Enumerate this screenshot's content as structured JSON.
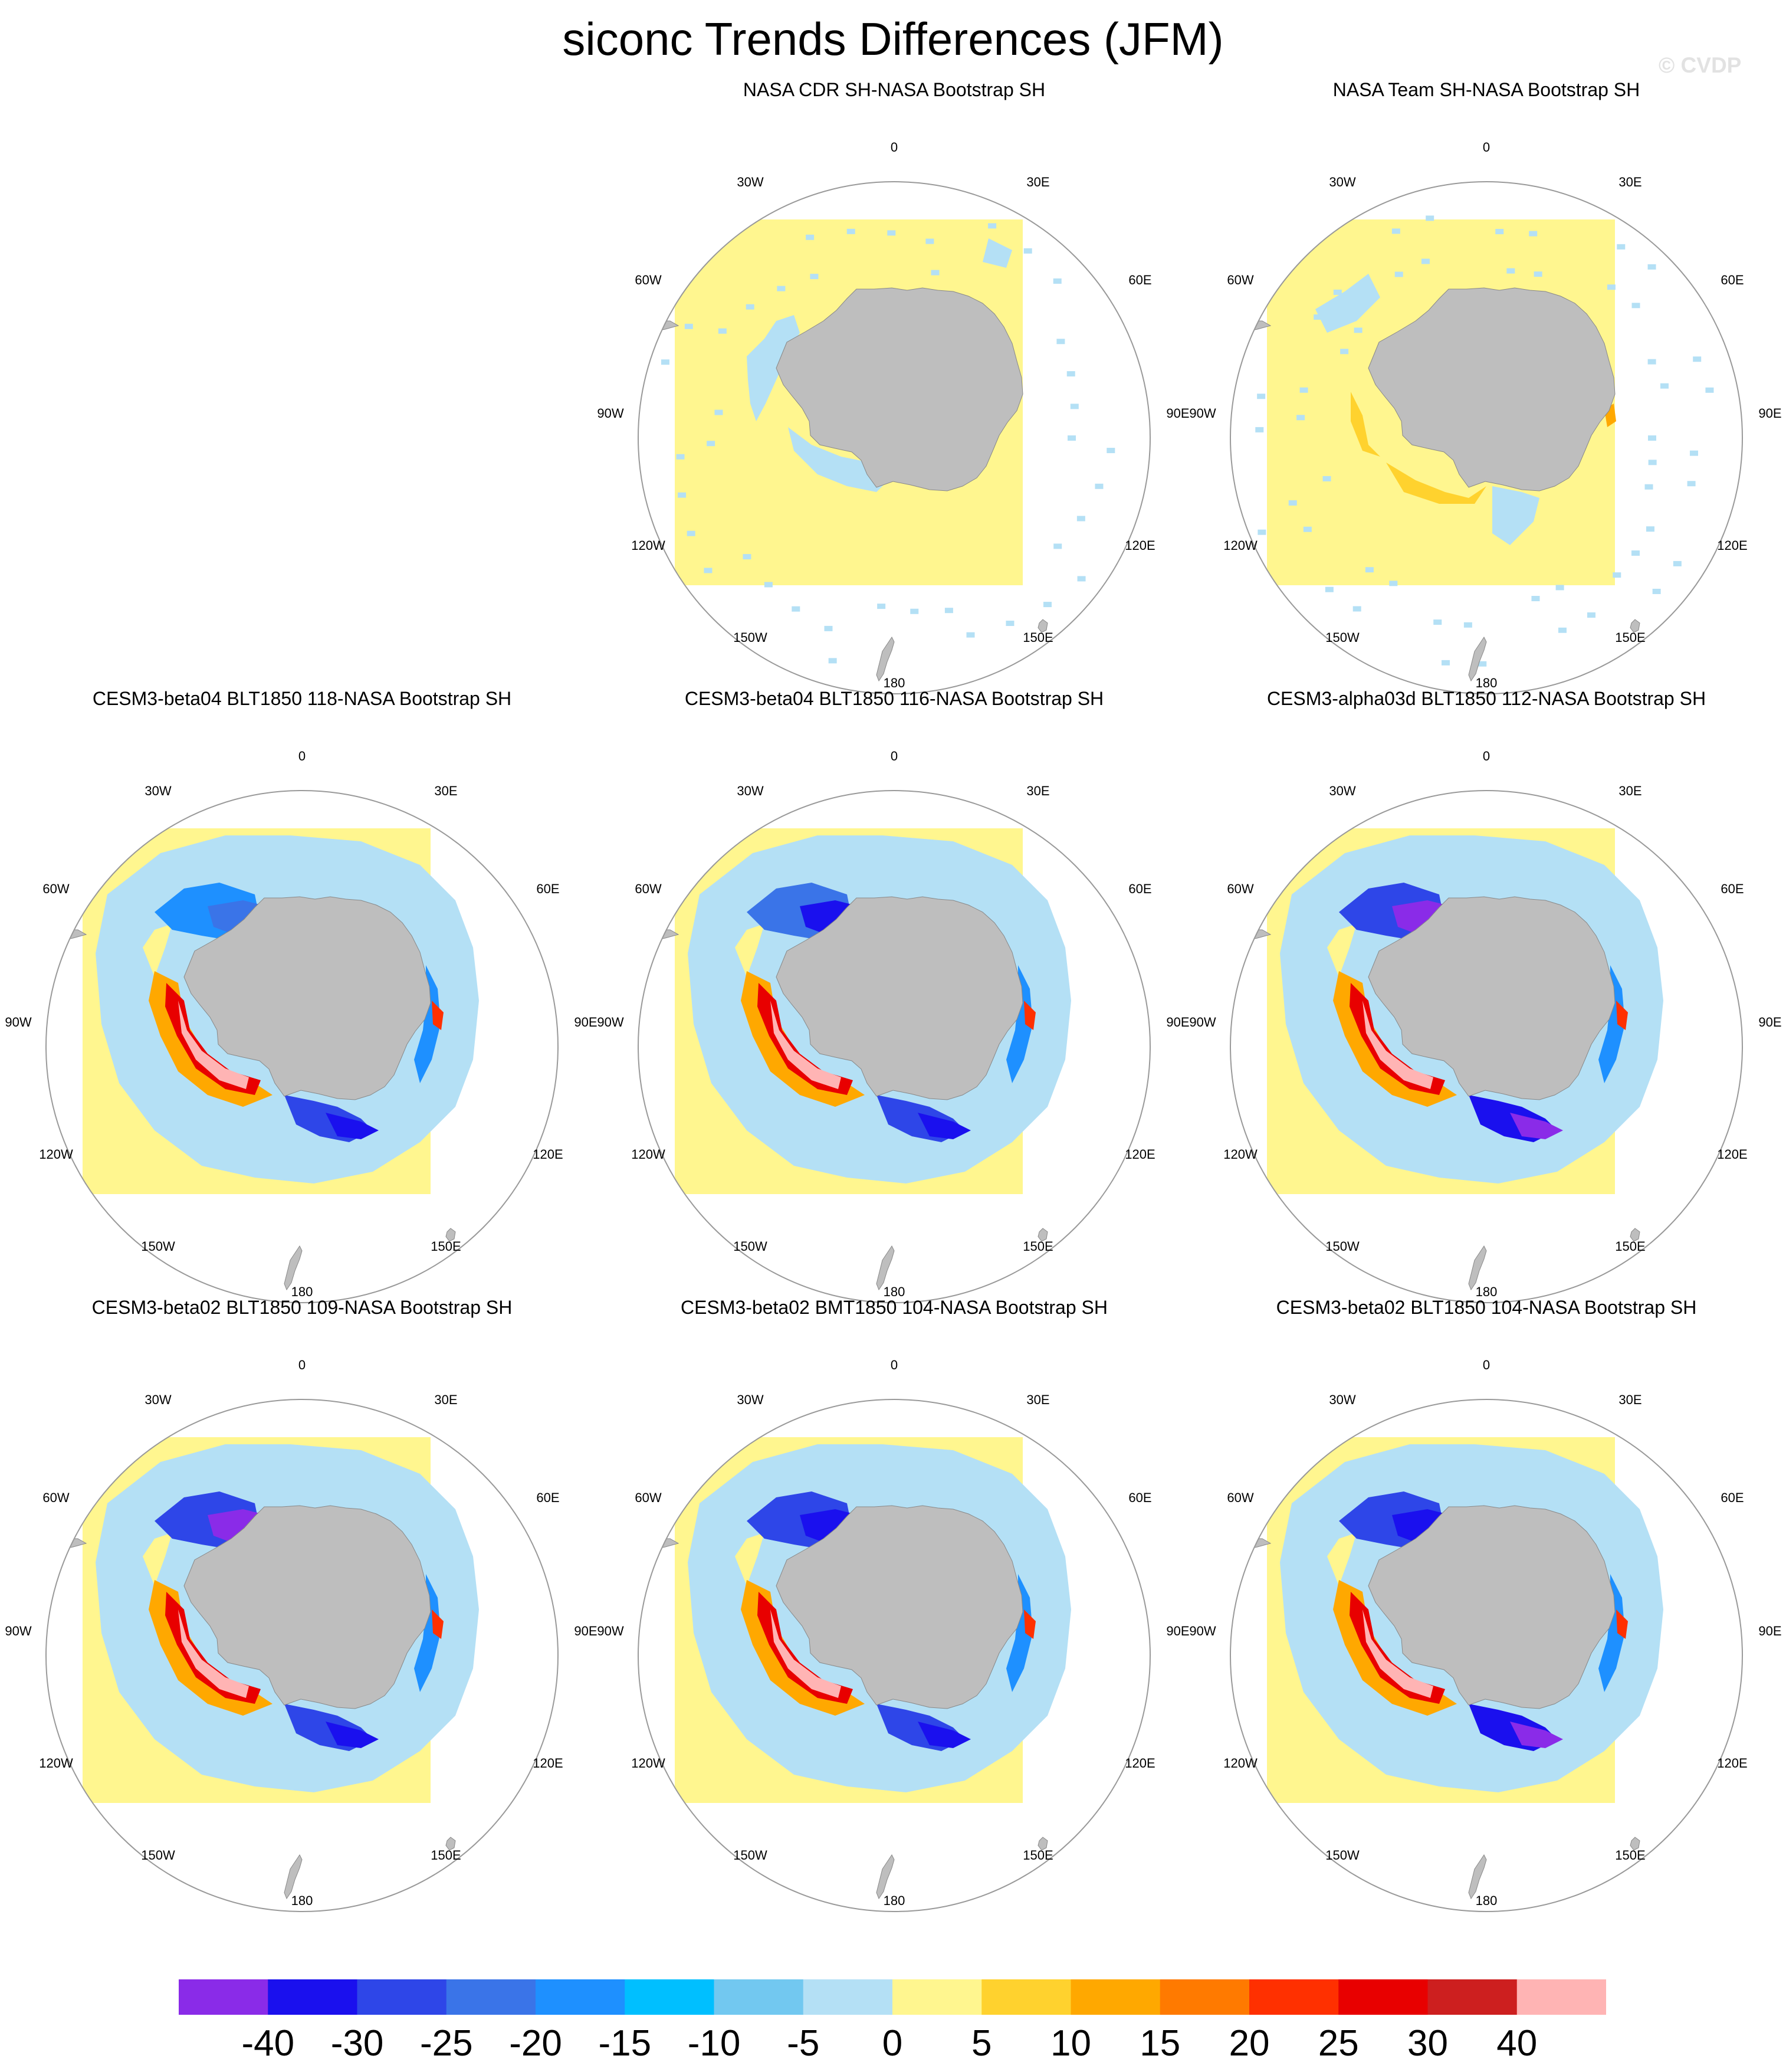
{
  "title": "siconc Trends Differences (JFM)",
  "watermark": "© CVDP",
  "longitude_labels": [
    "0",
    "30E",
    "60E",
    "90E",
    "120E",
    "150E",
    "180",
    "150W",
    "120W",
    "90W",
    "60W",
    "30W"
  ],
  "panels": [
    {
      "title": "NASA CDR SH-NASA Bootstrap SH",
      "model": false,
      "pattern": "cdr"
    },
    {
      "title": "NASA Team SH-NASA Bootstrap SH",
      "model": false,
      "pattern": "team"
    },
    {
      "title": "CESM3-beta04 BLT1850 118-NASA Bootstrap SH",
      "model": true,
      "pattern": "b04_118"
    },
    {
      "title": "CESM3-beta04 BLT1850 116-NASA Bootstrap SH",
      "model": true,
      "pattern": "b04_116"
    },
    {
      "title": "CESM3-alpha03d BLT1850 112-NASA Bootstrap SH",
      "model": true,
      "pattern": "a03d_112"
    },
    {
      "title": "CESM3-beta02 BLT1850 109-NASA Bootstrap SH",
      "model": true,
      "pattern": "b02_109"
    },
    {
      "title": "CESM3-beta02 BMT1850 104-NASA Bootstrap SH",
      "model": true,
      "pattern": "b02_bmt104"
    },
    {
      "title": "CESM3-beta02 BLT1850 104-NASA Bootstrap SH",
      "model": true,
      "pattern": "b02_blt104"
    }
  ],
  "colorbar": {
    "labels": [
      "-40",
      "-30",
      "-25",
      "-20",
      "-15",
      "-10",
      "-5",
      "0",
      "5",
      "10",
      "15",
      "20",
      "25",
      "30",
      "40"
    ],
    "colors": [
      "#8a2be8",
      "#1a10ee",
      "#2e46e8",
      "#3a74e8",
      "#1e90ff",
      "#00bfff",
      "#72c8f0",
      "#b4e0f5",
      "#fff68f",
      "#ffd22e",
      "#ffa800",
      "#ff7a00",
      "#ff3000",
      "#e80000",
      "#cd1f1f",
      "#ffb4b4"
    ]
  },
  "colors": {
    "land": "#bebebe",
    "ocean_box": "#fff68f",
    "circle": "#999999"
  }
}
